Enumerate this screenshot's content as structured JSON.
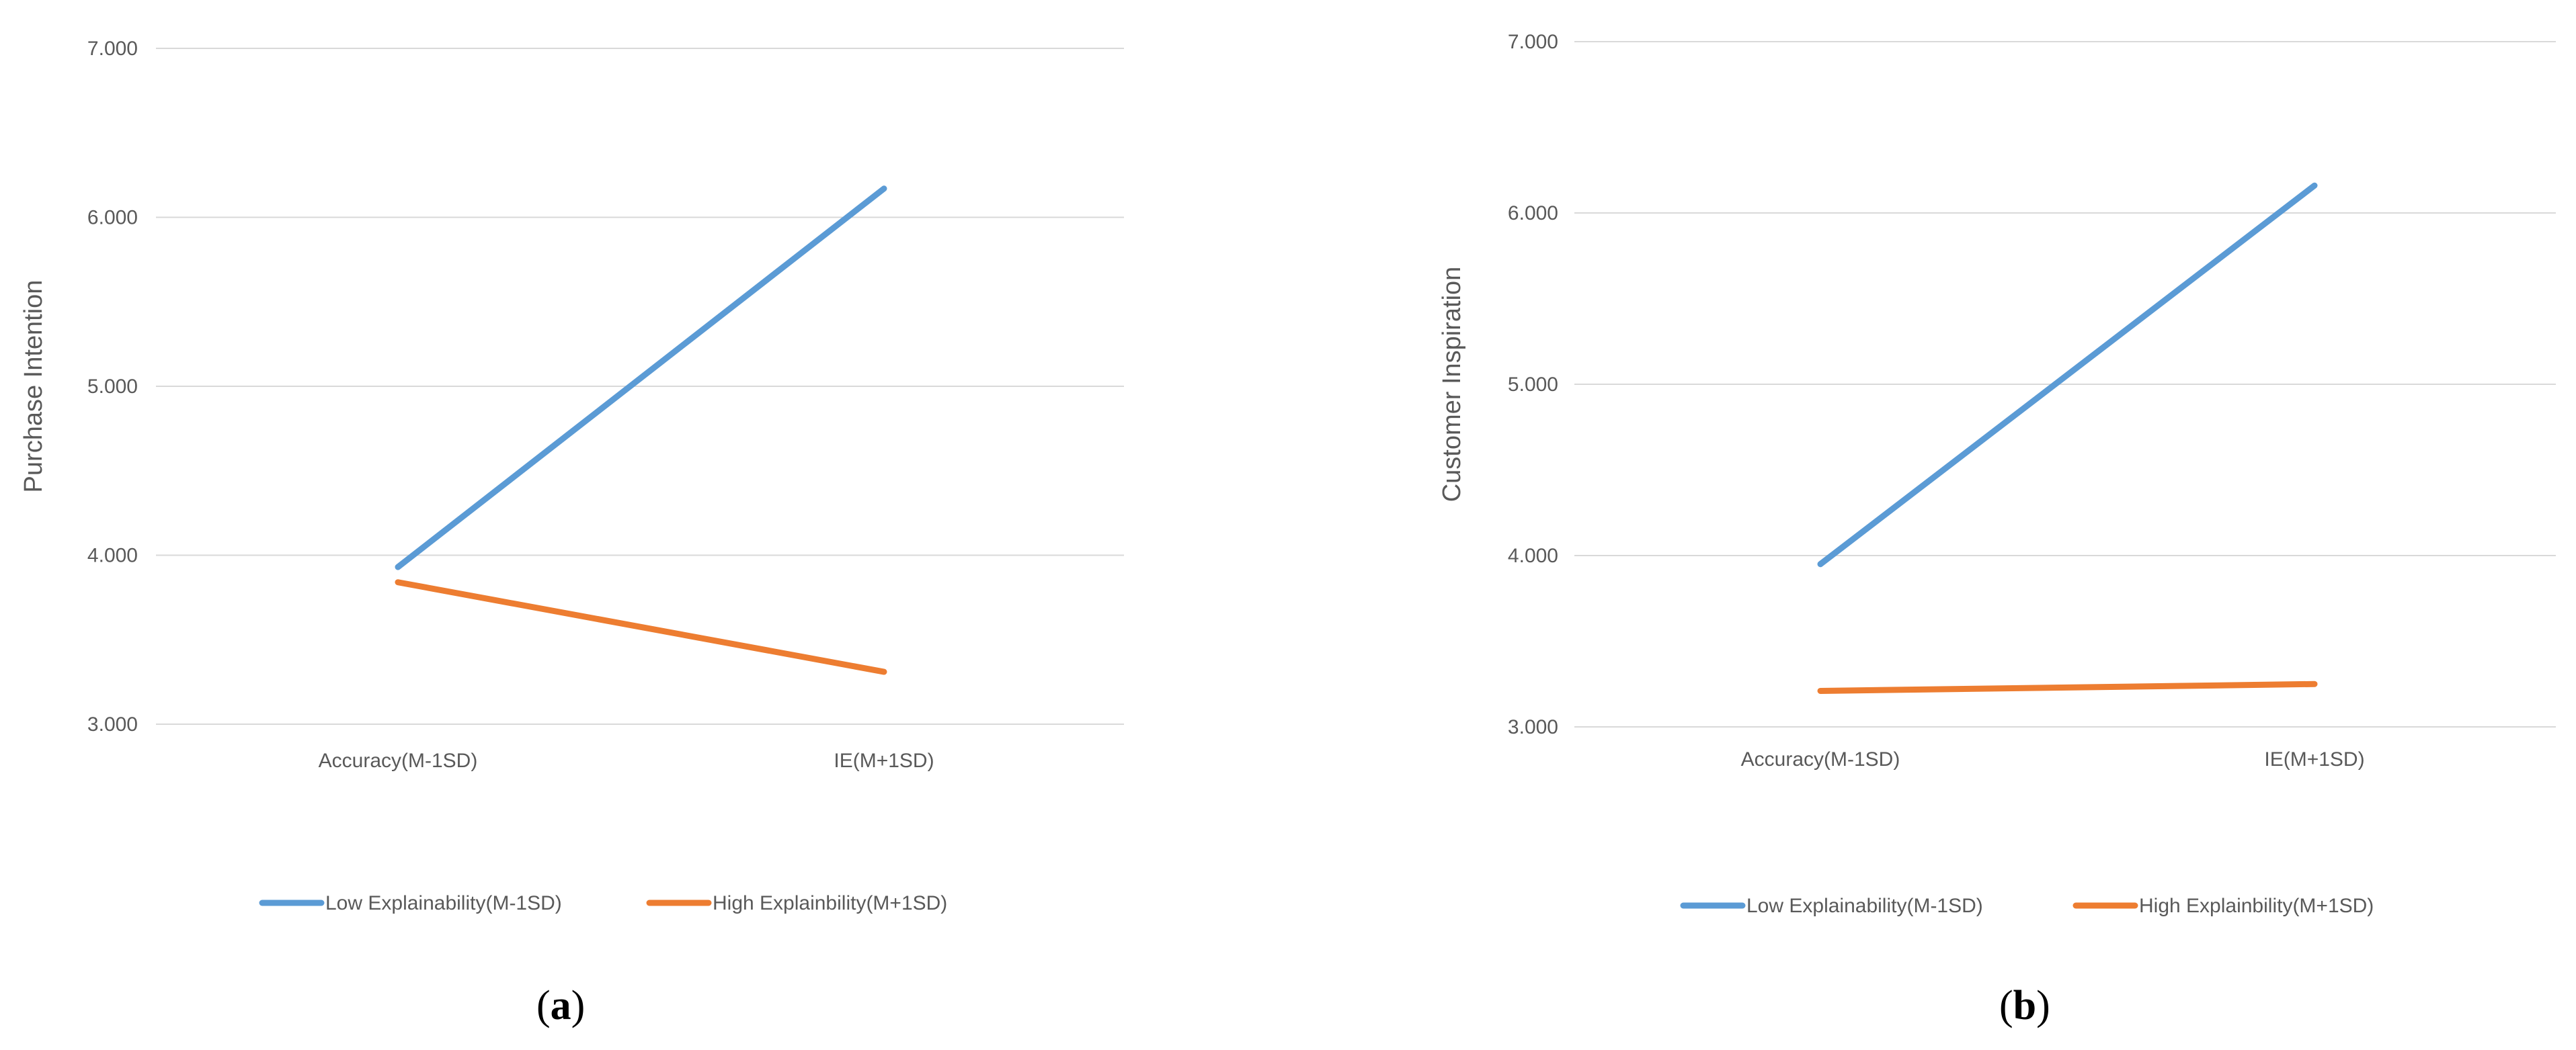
{
  "chart_data": [
    {
      "type": "line",
      "ylabel": "Purchase Intention",
      "categories": [
        "Accuracy(M-1SD)",
        "IE(M+1SD)"
      ],
      "ylim": [
        3.0,
        7.0
      ],
      "yticks": [
        "3.000",
        "4.000",
        "5.000",
        "6.000",
        "7.000"
      ],
      "grid": true,
      "legend": "bottom",
      "series": [
        {
          "name": "Low Explainability(M-1SD)",
          "color": "#5b9bd5",
          "values": [
            3.93,
            6.17
          ]
        },
        {
          "name": "High Explainbility(M+1SD)",
          "color": "#ed7d31",
          "values": [
            3.84,
            3.31
          ]
        }
      ],
      "panel_label": "a"
    },
    {
      "type": "line",
      "ylabel": "Customer Inspiration",
      "categories": [
        "Accuracy(M-1SD)",
        "IE(M+1SD)"
      ],
      "ylim": [
        3.0,
        7.0
      ],
      "yticks": [
        "3.000",
        "4.000",
        "5.000",
        "6.000",
        "7.000"
      ],
      "grid": true,
      "legend": "bottom",
      "series": [
        {
          "name": "Low Explainability(M-1SD)",
          "color": "#5b9bd5",
          "values": [
            3.95,
            6.16
          ]
        },
        {
          "name": "High Explainbility(M+1SD)",
          "color": "#ed7d31",
          "values": [
            3.21,
            3.25
          ]
        }
      ],
      "panel_label": "b"
    }
  ]
}
